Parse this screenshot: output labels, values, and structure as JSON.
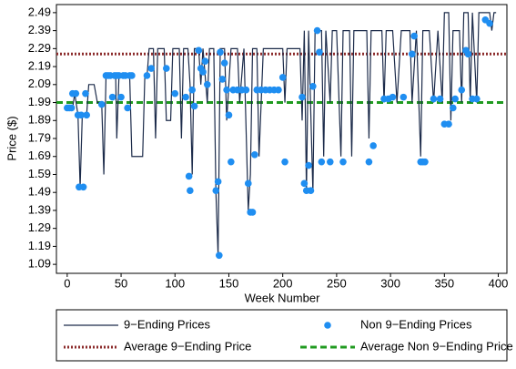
{
  "chart_data": {
    "type": "line",
    "y_label": "Price ($)",
    "x_label": "Week Number",
    "xlim": [
      -10,
      408
    ],
    "ylim": [
      1.04,
      2.535
    ],
    "xticks": [
      0,
      50,
      100,
      150,
      200,
      250,
      300,
      350,
      400
    ],
    "yticks": [
      1.09,
      1.19,
      1.29,
      1.39,
      1.49,
      1.59,
      1.69,
      1.79,
      1.89,
      1.99,
      2.09,
      2.19,
      2.29,
      2.39,
      2.49
    ],
    "series": [
      {
        "name": "9−Ending Prices",
        "type": "line",
        "color": "#1c2b4a",
        "x": [
          0,
          5,
          7,
          10,
          12,
          14,
          18,
          20,
          25,
          28,
          32,
          34,
          36,
          45,
          46,
          48,
          58,
          60,
          62,
          70,
          72,
          74,
          76,
          80,
          82,
          84,
          90,
          92,
          96,
          98,
          104,
          106,
          108,
          112,
          114,
          116,
          118,
          122,
          124,
          126,
          130,
          132,
          136,
          138,
          140,
          142,
          146,
          148,
          152,
          158,
          160,
          164,
          168,
          170,
          172,
          176,
          178,
          182,
          190,
          198,
          200,
          202,
          204,
          216,
          218,
          220,
          222,
          224,
          228,
          230,
          236,
          238,
          240,
          244,
          246,
          250,
          254,
          256,
          262,
          264,
          266,
          272,
          278,
          280,
          282,
          292,
          294,
          296,
          302,
          306,
          310,
          318,
          320,
          324,
          328,
          330,
          336,
          340,
          344,
          348,
          350,
          354,
          356,
          358,
          364,
          366,
          368,
          372,
          374,
          376,
          380,
          382,
          392,
          394,
          396,
          398
        ],
        "values": [
          1.96,
          1.96,
          2.04,
          1.92,
          1.52,
          1.92,
          1.92,
          2.09,
          2.09,
          1.99,
          1.99,
          1.59,
          2.13,
          2.13,
          1.79,
          2.13,
          2.13,
          1.69,
          1.69,
          1.69,
          2.13,
          2.13,
          2.29,
          2.29,
          1.79,
          2.29,
          2.29,
          1.89,
          1.89,
          2.29,
          2.29,
          1.79,
          2.29,
          2.29,
          2.09,
          1.59,
          2.29,
          2.29,
          2.09,
          2.29,
          1.99,
          2.29,
          2.29,
          1.49,
          1.14,
          2.29,
          2.29,
          1.89,
          2.29,
          2.29,
          1.99,
          2.29,
          1.39,
          1.59,
          2.29,
          2.29,
          1.69,
          2.29,
          2.29,
          2.29,
          2.29,
          1.99,
          2.29,
          2.29,
          1.89,
          2.39,
          1.49,
          2.39,
          1.49,
          2.39,
          2.39,
          1.69,
          2.39,
          1.99,
          2.39,
          2.39,
          1.69,
          2.39,
          2.39,
          1.69,
          2.39,
          2.39,
          2.39,
          1.79,
          2.39,
          2.39,
          1.99,
          2.39,
          2.39,
          1.99,
          2.39,
          2.39,
          1.99,
          2.39,
          1.69,
          2.39,
          2.39,
          1.99,
          2.39,
          1.99,
          2.49,
          2.49,
          1.89,
          2.39,
          2.39,
          1.99,
          2.49,
          2.49,
          1.99,
          2.49,
          1.99,
          2.49,
          2.49,
          2.39,
          2.49,
          2.49
        ]
      },
      {
        "name": "Non 9−Ending Prices",
        "type": "scatter",
        "color": "#1f8ef1",
        "x": [
          0,
          2,
          4,
          5,
          8,
          10,
          11,
          13,
          15,
          17,
          18,
          32,
          36,
          38,
          40,
          42,
          44,
          46,
          48,
          50,
          52,
          54,
          56,
          58,
          60,
          74,
          78,
          92,
          100,
          110,
          113,
          114,
          116,
          118,
          122,
          124,
          126,
          128,
          130,
          138,
          140,
          141,
          142,
          144,
          146,
          148,
          150,
          152,
          154,
          158,
          162,
          166,
          168,
          170,
          172,
          174,
          176,
          180,
          184,
          188,
          192,
          196,
          200,
          202,
          218,
          220,
          222,
          224,
          226,
          228,
          232,
          234,
          236,
          244,
          256,
          280,
          284,
          294,
          298,
          302,
          312,
          320,
          322,
          328,
          330,
          332,
          340,
          346,
          350,
          354,
          358,
          360,
          366,
          370,
          372,
          376,
          380,
          388,
          392
        ],
        "values": [
          1.96,
          1.96,
          1.96,
          2.04,
          2.04,
          1.92,
          1.52,
          1.92,
          1.52,
          2.04,
          1.92,
          1.98,
          2.14,
          2.14,
          2.14,
          2.02,
          2.14,
          2.14,
          2.14,
          2.02,
          2.14,
          2.14,
          1.96,
          2.14,
          2.14,
          2.14,
          2.18,
          2.18,
          2.04,
          2.02,
          1.58,
          1.5,
          2.06,
          1.97,
          2.28,
          2.18,
          2.16,
          2.22,
          2.09,
          1.5,
          1.55,
          1.14,
          2.27,
          2.12,
          2.21,
          2.06,
          1.92,
          1.66,
          2.06,
          2.06,
          2.06,
          2.06,
          1.54,
          1.38,
          1.38,
          1.7,
          2.06,
          2.06,
          2.06,
          2.06,
          2.06,
          2.06,
          2.13,
          1.66,
          2.02,
          1.54,
          1.5,
          1.64,
          1.5,
          2.08,
          2.39,
          2.27,
          1.66,
          1.66,
          1.66,
          1.66,
          1.75,
          2.01,
          2.01,
          2.02,
          2.02,
          2.26,
          2.36,
          1.66,
          1.66,
          1.66,
          2.01,
          2.01,
          1.87,
          1.87,
          1.96,
          2.01,
          2.06,
          2.28,
          2.26,
          2.01,
          2.01,
          2.45,
          2.43
        ]
      },
      {
        "name": "Average 9−Ending Price",
        "type": "hline",
        "color": "#8b2a2a",
        "dash": "2,2",
        "values": [
          2.26
        ]
      },
      {
        "name": "Average Non 9−Ending Price",
        "type": "hline",
        "color": "#1f9a1f",
        "dash": "7,4",
        "values": [
          1.99
        ]
      }
    ]
  }
}
